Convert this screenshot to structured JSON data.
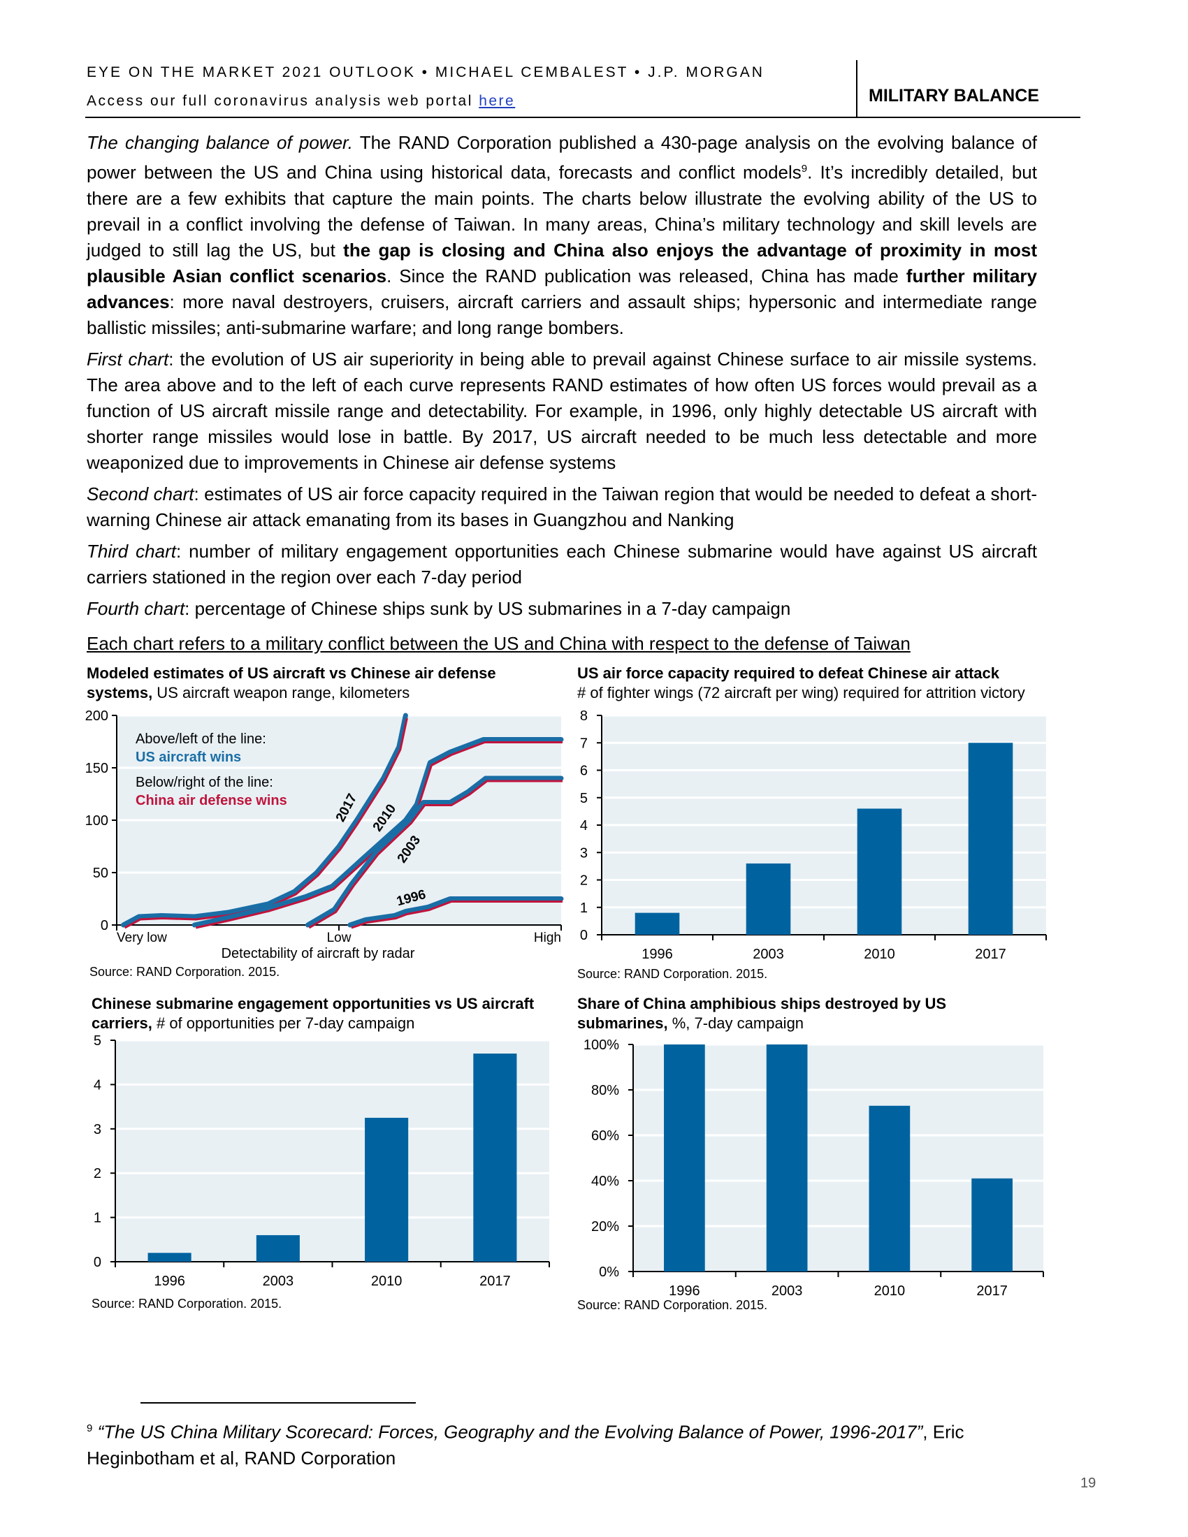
{
  "header": {
    "title": "EYE ON THE MARKET 2021 OUTLOOK • MICHAEL CEMBALEST • J.P. MORGAN",
    "portal_text": "Access our full coronavirus analysis web portal ",
    "portal_link": "here",
    "section": "MILITARY BALANCE"
  },
  "paragraphs": [
    [
      {
        "t": "The changing balance of power.",
        "s": "it"
      },
      {
        "t": "  The RAND Corporation published a 430-page analysis on the evolving balance of power between the US and China using historical data, forecasts and conflict models",
        "s": ""
      },
      {
        "t": "9",
        "s": "sup"
      },
      {
        "t": ".  It’s incredibly detailed, but there are a few exhibits that capture the main points.  The charts below illustrate the evolving ability of the US to prevail in a conflict involving the defense of Taiwan.  In many areas, China’s military technology and skill levels are judged to still lag the US, but ",
        "s": ""
      },
      {
        "t": "the gap is closing and China also enjoys the advantage of proximity in most plausible Asian conflict scenarios",
        "s": "b"
      },
      {
        "t": ".  Since the RAND publication was released, China has made ",
        "s": ""
      },
      {
        "t": "further military advances",
        "s": "b"
      },
      {
        "t": ": more naval destroyers, cruisers, aircraft carriers and assault ships; hypersonic and intermediate range ballistic missiles; anti-submarine warfare; and long range bombers.",
        "s": ""
      }
    ],
    [
      {
        "t": "First chart",
        "s": "it"
      },
      {
        "t": ": the evolution of US air superiority in being able to prevail against Chinese surface to air missile systems.  The area above and to the left of each curve represents RAND estimates of how often US forces would prevail as a function of US aircraft missile range and detectability.  For example, in 1996, only highly detectable US aircraft with shorter range missiles would lose in battle.  By 2017, US aircraft needed to be much less detectable and more weaponized due to improvements in Chinese air defense systems",
        "s": ""
      }
    ],
    [
      {
        "t": "Second chart",
        "s": "it"
      },
      {
        "t": ": estimates of US air force capacity required in the Taiwan region that would be needed to defeat a short-warning Chinese air attack emanating from its bases in Guangzhou and Nanking",
        "s": ""
      }
    ],
    [
      {
        "t": "Third chart",
        "s": "it"
      },
      {
        "t": ": number of military engagement opportunities each Chinese submarine would have against US aircraft carriers stationed in the region over each 7-day period",
        "s": ""
      }
    ],
    [
      {
        "t": "Fourth chart",
        "s": "it"
      },
      {
        "t": ": percentage of Chinese ships sunk by US submarines in a 7-day campaign",
        "s": ""
      }
    ]
  ],
  "charts_note": "Each chart refers to a military conflict between the US and China with respect to the defense of Taiwan",
  "colors": {
    "bar": "#0063a0",
    "blue_line": "#1a6ea6",
    "red_line": "#c0143c",
    "plot_bg": "#e8f0f4"
  },
  "chart_data": [
    {
      "type": "line",
      "title_bold": "Modeled estimates of US aircraft vs Chinese air defense systems,",
      "title_rest": " US aircraft weapon range, kilometers",
      "xlabel": "Detectability of aircraft by radar",
      "x_ticks": [
        "Very low",
        "Low",
        "High"
      ],
      "xlim": [
        0,
        2
      ],
      "ylim": [
        0,
        200
      ],
      "y_ticks": [
        "0",
        "50",
        "100",
        "150",
        "200"
      ],
      "legend": {
        "above_label": "Above/left of the line:",
        "above_value": "US aircraft wins",
        "below_label": "Below/right of the line:",
        "below_value": "China air defense wins"
      },
      "series": [
        {
          "name": "2017",
          "points": [
            [
              0.03,
              0
            ],
            [
              0.1,
              8
            ],
            [
              0.2,
              9
            ],
            [
              0.35,
              8
            ],
            [
              0.5,
              12
            ],
            [
              0.68,
              20
            ],
            [
              0.8,
              32
            ],
            [
              0.9,
              50
            ],
            [
              1.0,
              75
            ],
            [
              1.08,
              100
            ],
            [
              1.2,
              140
            ],
            [
              1.27,
              170
            ],
            [
              1.3,
              200
            ]
          ]
        },
        {
          "name": "2010",
          "points": [
            [
              0.35,
              0
            ],
            [
              0.5,
              7
            ],
            [
              0.68,
              16
            ],
            [
              0.85,
              27
            ],
            [
              0.97,
              37
            ],
            [
              1.1,
              62
            ],
            [
              1.3,
              100
            ],
            [
              1.35,
              115
            ],
            [
              1.41,
              155
            ],
            [
              1.5,
              165
            ],
            [
              1.6,
              173
            ],
            [
              1.65,
              177
            ],
            [
              2.0,
              177
            ]
          ]
        },
        {
          "name": "2003",
          "points": [
            [
              0.86,
              0
            ],
            [
              0.98,
              15
            ],
            [
              1.06,
              40
            ],
            [
              1.17,
              70
            ],
            [
              1.32,
              100
            ],
            [
              1.38,
              117
            ],
            [
              1.5,
              117
            ],
            [
              1.58,
              127
            ],
            [
              1.66,
              140
            ],
            [
              2.0,
              140
            ]
          ]
        },
        {
          "name": "1996",
          "points": [
            [
              1.05,
              0
            ],
            [
              1.12,
              5
            ],
            [
              1.25,
              9
            ],
            [
              1.3,
              13
            ],
            [
              1.4,
              17
            ],
            [
              1.5,
              25
            ],
            [
              2.0,
              25
            ]
          ]
        }
      ],
      "source": "Source: RAND Corporation. 2015."
    },
    {
      "type": "bar",
      "title_bold": "US air force capacity required to defeat Chinese air attack",
      "title_rest": "# of fighter wings (72 aircraft per wing) required for attrition victory",
      "categories": [
        "1996",
        "2003",
        "2010",
        "2017"
      ],
      "values": [
        0.8,
        2.6,
        4.6,
        7.0
      ],
      "ylim": [
        0,
        8
      ],
      "y_ticks": [
        "0",
        "1",
        "2",
        "3",
        "4",
        "5",
        "6",
        "7",
        "8"
      ],
      "source": "Source: RAND Corporation. 2015."
    },
    {
      "type": "bar",
      "title_bold": "Chinese submarine engagement opportunities vs US aircraft carriers,",
      "title_rest": " # of opportunities per 7-day campaign",
      "categories": [
        "1996",
        "2003",
        "2010",
        "2017"
      ],
      "values": [
        0.2,
        0.6,
        3.25,
        4.7
      ],
      "ylim": [
        0,
        5
      ],
      "y_ticks": [
        "0",
        "1",
        "2",
        "3",
        "4",
        "5"
      ],
      "source": "Source: RAND Corporation. 2015."
    },
    {
      "type": "bar",
      "title_bold": "Share of China amphibious ships destroyed by US submarines,",
      "title_rest": " %, 7-day campaign",
      "categories": [
        "1996",
        "2003",
        "2010",
        "2017"
      ],
      "values": [
        100,
        100,
        73,
        41
      ],
      "ylim": [
        0,
        100
      ],
      "y_ticks": [
        "0%",
        "20%",
        "40%",
        "60%",
        "80%",
        "100%"
      ],
      "source": "Source: RAND Corporation. 2015."
    }
  ],
  "footnote": {
    "number": "9",
    "title": "“The US China Military Scorecard: Forces, Geography and the Evolving Balance of Power, 1996-2017”",
    "rest": ", Eric Heginbotham et al, RAND Corporation"
  },
  "page_number": "19"
}
